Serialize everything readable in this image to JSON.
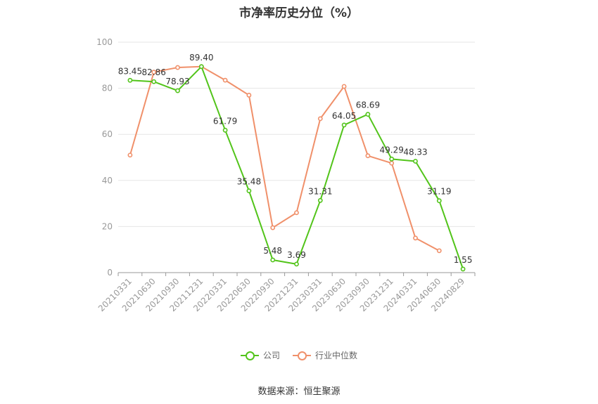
{
  "chart_data": {
    "type": "line",
    "title": "市净率历史分位（%）",
    "categories": [
      "20210331",
      "20210630",
      "20210930",
      "20211231",
      "20220331",
      "20220630",
      "20220930",
      "20221231",
      "20230331",
      "20230630",
      "20230930",
      "20231231",
      "20240331",
      "20240630",
      "20240829"
    ],
    "ylim": [
      0,
      100
    ],
    "yticks": [
      0,
      20,
      40,
      60,
      80,
      100
    ],
    "grid": true,
    "legend_position": "bottom",
    "series": [
      {
        "name": "公司",
        "color": "#52c41a",
        "show_labels": true,
        "values": [
          83.45,
          82.86,
          78.93,
          89.4,
          61.79,
          35.48,
          5.48,
          3.69,
          31.31,
          64.05,
          68.69,
          49.29,
          48.33,
          31.19,
          1.55
        ]
      },
      {
        "name": "行业中位数",
        "color": "#f0906a",
        "show_labels": false,
        "values": [
          51,
          87,
          89,
          89.4,
          83.5,
          77,
          19.5,
          26,
          66.8,
          80.8,
          50.7,
          47.5,
          15,
          9.5,
          null
        ]
      }
    ]
  },
  "legend": {
    "company": "公司",
    "industry": "行业中位数"
  },
  "source": "数据来源：恒生聚源"
}
